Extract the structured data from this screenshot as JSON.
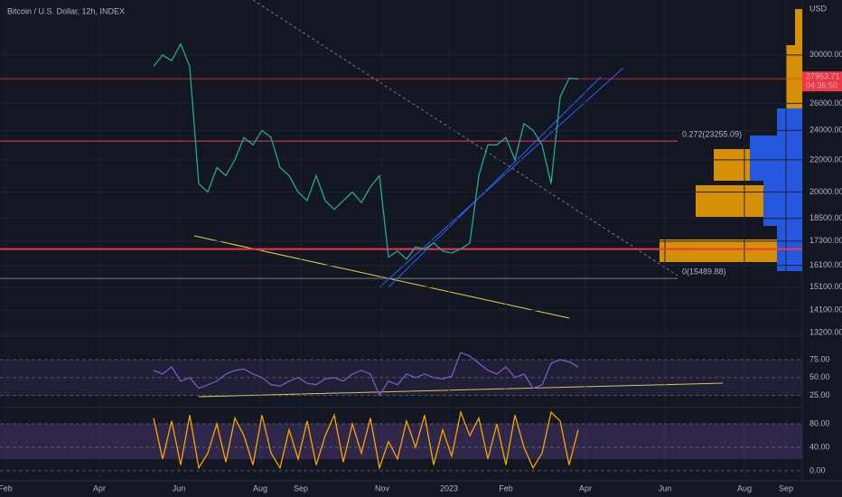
{
  "header": {
    "title": "Bitcoin / U.S. Dollar, 12h, INDEX",
    "currency": "USD"
  },
  "time_axis": [
    "Feb",
    "Apr",
    "Jun",
    "Aug",
    "Sep",
    "Nov",
    "2023",
    "Feb",
    "Apr",
    "Jun",
    "Aug",
    "Sep"
  ],
  "chart_data": [
    {
      "type": "line",
      "log_scale": true,
      "color": "#26a69a",
      "ylim": [
        13060,
        35300
      ],
      "yticks": [
        {
          "value": 30000,
          "label": "30000.00"
        },
        {
          "value": 26000,
          "label": "26000.00"
        },
        {
          "value": 24000,
          "label": "24000.00"
        },
        {
          "value": 22000,
          "label": "22000.00"
        },
        {
          "value": 20000,
          "label": "20000.00"
        },
        {
          "value": 18500,
          "label": "18500.00"
        },
        {
          "value": 17300,
          "label": "17300.00"
        },
        {
          "value": 16100,
          "label": "16100.00"
        },
        {
          "value": 15100,
          "label": "15100.00"
        },
        {
          "value": 14100,
          "label": "14100.00"
        },
        {
          "value": 13200,
          "label": "13200.00"
        }
      ],
      "values": [
        29000,
        30000,
        29500,
        31000,
        29000,
        20500,
        20000,
        21500,
        21000,
        22000,
        23500,
        23000,
        24000,
        23500,
        21500,
        21000,
        20000,
        19500,
        21000,
        19500,
        19000,
        19500,
        20000,
        19400,
        20300,
        21000,
        16500,
        16800,
        16400,
        17000,
        16900,
        17200,
        16800,
        16700,
        16900,
        17200,
        21000,
        23000,
        23000,
        23500,
        22000,
        24500,
        24000,
        23000,
        20500,
        26500,
        28000,
        27963.71
      ],
      "last_price": {
        "value": 27963.71,
        "label": "27963.71"
      },
      "countdown": "04:36:50",
      "support": 16900,
      "levels": [
        {
          "value": 23255.09,
          "label": "0.272(23255.09)",
          "color": "#f23645"
        },
        {
          "value": 15489.88,
          "label": "0(15489.88)",
          "color": "#787b86"
        }
      ]
    },
    {
      "type": "line",
      "color": "#7e57c2",
      "ylim": [
        8,
        108
      ],
      "yticks": [
        {
          "value": 75,
          "label": "75.00"
        },
        {
          "value": 50,
          "label": "50.00"
        },
        {
          "value": 25,
          "label": "25.00"
        }
      ],
      "values": [
        60,
        55,
        65,
        45,
        50,
        35,
        40,
        45,
        55,
        60,
        62,
        55,
        50,
        40,
        38,
        45,
        50,
        42,
        40,
        48,
        50,
        45,
        55,
        60,
        55,
        25,
        45,
        40,
        55,
        50,
        55,
        50,
        48,
        52,
        85,
        80,
        70,
        60,
        55,
        65,
        50,
        55,
        35,
        40,
        70,
        75,
        72,
        65
      ]
    },
    {
      "type": "line",
      "color": "#f7a600",
      "ylim": [
        -17,
        108
      ],
      "yticks": [
        {
          "value": 80,
          "label": "80.00"
        },
        {
          "value": 40,
          "label": "40.00"
        },
        {
          "value": 0,
          "label": "0.00"
        }
      ],
      "band": [
        20,
        80
      ],
      "values": [
        90,
        20,
        85,
        10,
        95,
        5,
        30,
        80,
        15,
        90,
        60,
        10,
        95,
        30,
        5,
        70,
        20,
        85,
        10,
        60,
        95,
        15,
        80,
        30,
        90,
        5,
        50,
        20,
        85,
        40,
        95,
        10,
        70,
        25,
        100,
        60,
        90,
        20,
        80,
        10,
        95,
        40,
        5,
        30,
        100,
        85,
        10,
        70
      ]
    }
  ]
}
